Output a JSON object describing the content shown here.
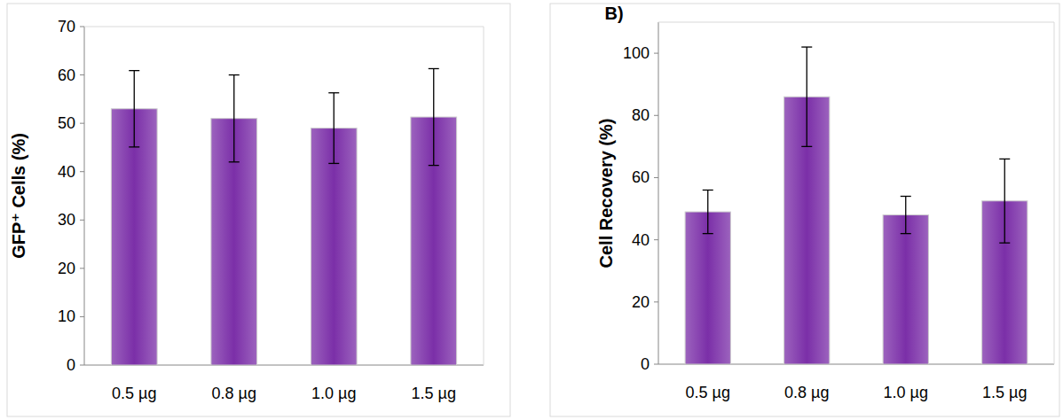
{
  "chart_data": [
    {
      "type": "bar",
      "y_label": "GFP⁺ Cells  (%)",
      "categories": [
        "0.5 µg",
        "0.8 µg",
        "1.0 µg",
        "1.5 µg"
      ],
      "values": [
        53,
        51,
        49,
        51.3
      ],
      "errors": [
        7.9,
        9,
        7.3,
        10
      ],
      "color": "#7b2fa8",
      "ylim": [
        0,
        70
      ],
      "yticks": [
        0,
        10,
        20,
        30,
        40,
        50,
        60,
        70
      ],
      "grid": false
    },
    {
      "type": "bar",
      "title": "B)",
      "y_label": "Cell  Recovery (%)",
      "categories": [
        "0.5 µg",
        "0.8 µg",
        "1.0 µg",
        "1.5 µg"
      ],
      "values": [
        49,
        86,
        48,
        52.5
      ],
      "errors": [
        7,
        16,
        6,
        13.5
      ],
      "color": "#7b2fa8",
      "ylim": [
        0,
        110
      ],
      "yticks": [
        0,
        20,
        40,
        60,
        80,
        100
      ],
      "grid": false
    }
  ]
}
